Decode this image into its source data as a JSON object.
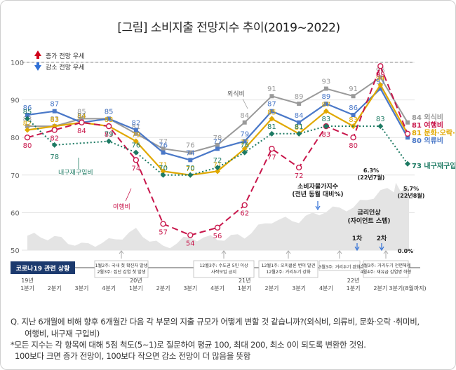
{
  "title": "[그림] 소비지출 전망지수 추이(2019~2022)",
  "legend": {
    "up": "증가 전망 우세",
    "down": "감소 전망 우세"
  },
  "chart_data": {
    "type": "line",
    "ylim": [
      50,
      100
    ],
    "yticks": [
      50,
      60,
      70,
      80,
      90,
      100
    ],
    "reference_line": 100,
    "x_labels": [
      {
        "year": "19년",
        "q": "1분기"
      },
      {
        "year": "",
        "q": "2분기"
      },
      {
        "year": "",
        "q": "3분기"
      },
      {
        "year": "",
        "q": "4분기"
      },
      {
        "year": "20년",
        "q": "1분기"
      },
      {
        "year": "",
        "q": "2분기"
      },
      {
        "year": "",
        "q": "3분기"
      },
      {
        "year": "",
        "q": "4분기"
      },
      {
        "year": "21년",
        "q": "1분기"
      },
      {
        "year": "",
        "q": "2분기"
      },
      {
        "year": "",
        "q": "3분기"
      },
      {
        "year": "",
        "q": "4분기"
      },
      {
        "year": "22년",
        "q": "1분기"
      },
      {
        "year": "",
        "q": "2분기"
      },
      {
        "year": "",
        "q": "3분기(8월까지)"
      }
    ],
    "series": [
      {
        "name": "외식비",
        "color": "#9a9a9a",
        "labels": [
          "83",
          "83",
          "85",
          "85",
          "81",
          "77",
          "76",
          "78",
          "84",
          "91",
          "89",
          "93",
          "91",
          "96",
          "84"
        ],
        "values": [
          83,
          83,
          85,
          85,
          81,
          77,
          76,
          78,
          84,
          91,
          89,
          93,
          91,
          96,
          84
        ]
      },
      {
        "name": "의류비",
        "color": "#4a78c8",
        "labels": [
          "86",
          "87",
          "84",
          "85",
          "82",
          "76",
          "74",
          "77",
          "79",
          "87",
          "84",
          "89",
          "86",
          "93",
          "80"
        ],
        "values": [
          86,
          87,
          84,
          85,
          82,
          76,
          74,
          77,
          79,
          87,
          84,
          89,
          86,
          93,
          80
        ]
      },
      {
        "name": "문화·오락·취미비",
        "color": "#e0a800",
        "labels": [
          "82",
          "83",
          "84",
          "83",
          "79",
          "71",
          "70",
          "71",
          "77",
          "85",
          "81",
          "87",
          "83",
          "94",
          "81"
        ],
        "values": [
          82,
          83,
          84,
          83,
          79,
          71,
          70,
          71,
          77,
          85,
          81,
          87,
          83,
          94,
          81
        ]
      },
      {
        "name": "여행비",
        "color": "#c8164b",
        "labels": [
          "80",
          "82",
          "84",
          "83",
          "74",
          "57",
          "54",
          "56",
          "62",
          "77",
          "72",
          "83",
          "80",
          "99",
          "81"
        ],
        "values": [
          80,
          82,
          84,
          83,
          74,
          57,
          54,
          56,
          62,
          77,
          72,
          83,
          80,
          99,
          81
        ]
      },
      {
        "name": "내구재구입비",
        "color": "#1d7a63",
        "labels": [
          "85",
          "78",
          "",
          "79",
          "76",
          "70",
          "70",
          "72",
          "76",
          "81",
          "81",
          "83",
          "",
          "83",
          "73"
        ],
        "values": [
          85,
          78,
          null,
          79,
          76,
          70,
          70,
          72,
          76,
          81,
          81,
          83,
          null,
          83,
          73
        ]
      }
    ],
    "end_labels": [
      {
        "value": "84",
        "name": "외식비"
      },
      {
        "value": "81",
        "name": "여행비"
      },
      {
        "value": "81",
        "name": "문화·오락·취미비"
      },
      {
        "value": "80",
        "name": "의류비"
      },
      {
        "value": "73",
        "name": "내구재구입비"
      }
    ],
    "inline_labels": {
      "eating": "외식비",
      "durable": "내구재구입비",
      "travel": "여행비"
    },
    "inflation": {
      "annotation": "소비자물가지수\n(전년 동월 대비%)",
      "label_peak": "6.3%\n(22년7월)",
      "label_end": "5.7%\n(22년8월)",
      "label_zero": "0.0%",
      "values": [
        0.9,
        0.7,
        -0.1,
        0.3,
        1.4,
        -0.3,
        0.7,
        0.6,
        0.9,
        2.5,
        2.5,
        3.5,
        3.8,
        5.4,
        5.7
      ],
      "peak_value": 6.3
    },
    "rate_hikes": {
      "title": "금리인상\n(자이언트 스텝)",
      "first": "1차",
      "second": "2차"
    },
    "covid": {
      "label": "코로나19 관련 상황",
      "events": [
        "1월2주: 국내 첫 확진자 발생\n2월3주: 집단 감염 첫 발생",
        "12월3주: 수도권 5인 이상\n사적모임 금지",
        "12월1주: 오미클론 변이 발견\n12월2주: 거리두기 강화",
        "3월3주: 거리두기 완화",
        "4월3주: 거리두기 전면해제\n4월4주: 재유급 감염병 하향"
      ]
    }
  },
  "notes": {
    "question": "Q. 지난 6개월에 비해 향후 6개월간 다음 각 부문의 지출 규모가 어떻게 변할 것 같습니까?(외식비, 의류비, 문화·오락 ·취미비,\n      여행비, 내구재 구입비)",
    "note1": "*모든 지수는 각 항목에 대해 5점 척도(5~1)로 질문하여 평균 100, 최대 200, 최소 0이 되도록 변환한 것임.",
    "note2": "100보다 크면 증가 전망이, 100보다 작으면 감소 전망이 더 많음을 뜻함"
  }
}
